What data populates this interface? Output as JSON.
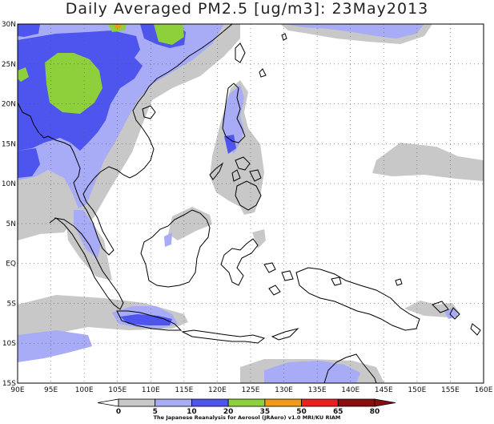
{
  "title": "Daily Averaged PM2.5 [ug/m3]: 23May2013",
  "map": {
    "lon_range": [
      90,
      160
    ],
    "lat_range": [
      -15,
      30
    ],
    "lon_labels": [
      "90E",
      "95E",
      "100E",
      "105E",
      "110E",
      "115E",
      "120E",
      "125E",
      "130E",
      "135E",
      "140E",
      "145E",
      "150E",
      "155E",
      "160E"
    ],
    "lat_labels": [
      "30N",
      "25N",
      "20N",
      "15N",
      "10N",
      "5N",
      "EQ",
      "5S",
      "10S",
      "15S"
    ],
    "grid": "dotted"
  },
  "legend": {
    "values": [
      "0",
      "5",
      "10",
      "20",
      "35",
      "50",
      "65",
      "80"
    ],
    "colors": [
      "#ffffff",
      "#c8c8c8",
      "#a8abf5",
      "#4d55ee",
      "#8ed03c",
      "#f19a18",
      "#ec1f1f",
      "#8a0d0d"
    ]
  },
  "credit": "The Japanese Reanalysis for Aerosol (JRAero) v1.0 MRI/KU RIAM"
}
